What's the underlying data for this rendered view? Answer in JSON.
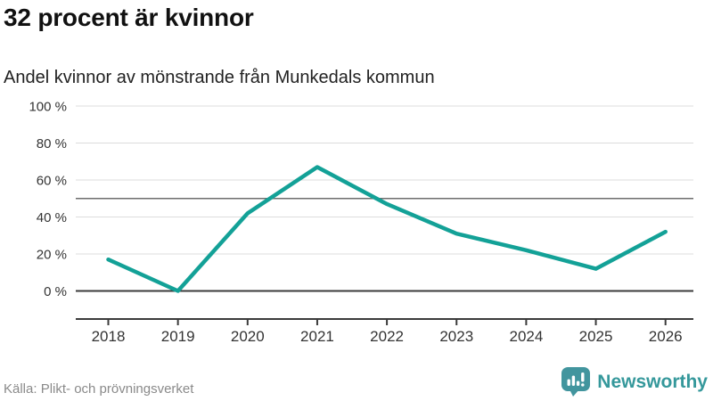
{
  "header": {
    "title": "32 procent är kvinnor",
    "subtitle": "Andel kvinnor av mönstrande från Munkedals kommun"
  },
  "chart_data": {
    "type": "line",
    "title": "32 procent är kvinnor",
    "subtitle": "Andel kvinnor av mönstrande från Munkedals kommun",
    "x": [
      "2018",
      "2019",
      "2020",
      "2021",
      "2022",
      "2023",
      "2024",
      "2025",
      "2026"
    ],
    "series": [
      {
        "name": "Andel kvinnor av mönstrande",
        "values": [
          17,
          0,
          42,
          67,
          47,
          31,
          22,
          12,
          32
        ]
      }
    ],
    "unit": "%",
    "ylim": [
      0,
      100
    ],
    "yticks": [
      0,
      20,
      40,
      60,
      80,
      100
    ],
    "ytick_labels": [
      "0 %",
      "20 %",
      "40 %",
      "60 %",
      "80 %",
      "100 %"
    ],
    "reference_line": 50,
    "grid": "horizontal",
    "legend": "none",
    "colors": {
      "line": "#13a197",
      "grid": "#dcdcdc",
      "reference": "#6e6e6e",
      "axis": "#3b3b3b",
      "tick_text": "#333333"
    }
  },
  "footer": {
    "source": "Källa: Plikt- och prövningsverket",
    "logo_text": "Newsworthy",
    "logo_color": "#42959e"
  }
}
